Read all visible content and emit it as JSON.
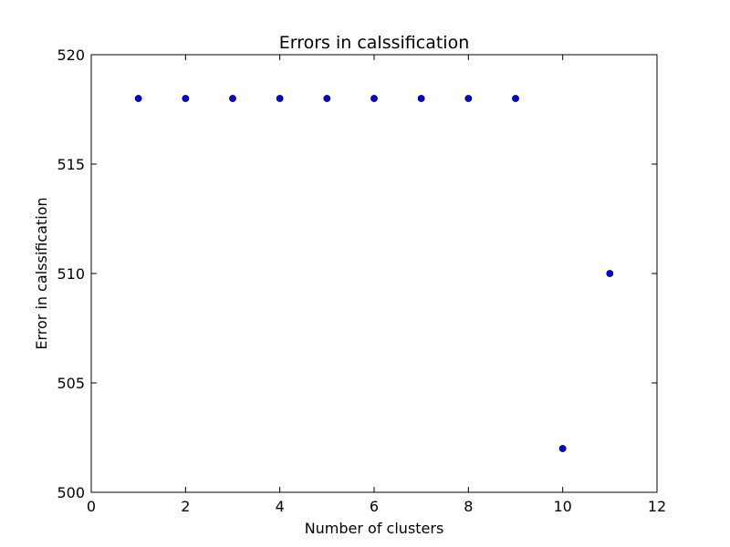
{
  "chart_data": {
    "type": "scatter",
    "title": "Errors in calssification",
    "xlabel": "Number of clusters",
    "ylabel": "Error in calssification",
    "xlim": [
      0,
      12
    ],
    "ylim": [
      500,
      520
    ],
    "xticks": [
      0,
      2,
      4,
      6,
      8,
      10,
      12
    ],
    "yticks": [
      500,
      505,
      510,
      515,
      520
    ],
    "grid": false,
    "series": [
      {
        "color": "#0000ff",
        "points": [
          {
            "x": 1,
            "y": 518
          },
          {
            "x": 2,
            "y": 518
          },
          {
            "x": 3,
            "y": 518
          },
          {
            "x": 4,
            "y": 518
          },
          {
            "x": 5,
            "y": 518
          },
          {
            "x": 6,
            "y": 518
          },
          {
            "x": 7,
            "y": 518
          },
          {
            "x": 8,
            "y": 518
          },
          {
            "x": 9,
            "y": 518
          },
          {
            "x": 10,
            "y": 502
          },
          {
            "x": 11,
            "y": 510
          }
        ]
      }
    ]
  }
}
